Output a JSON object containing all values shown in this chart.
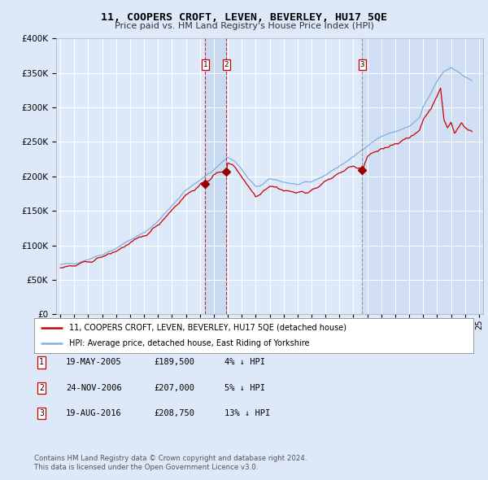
{
  "title": "11, COOPERS CROFT, LEVEN, BEVERLEY, HU17 5QE",
  "subtitle": "Price paid vs. HM Land Registry's House Price Index (HPI)",
  "background_color": "#dde8f8",
  "plot_bg_color": "#dde8f8",
  "grid_color": "#ffffff",
  "red_line_color": "#cc0000",
  "blue_line_color": "#7fb0e0",
  "shade_color": "#c5d8f0",
  "transactions": [
    {
      "num": 1,
      "price": 189500,
      "x_year": 2005.38
    },
    {
      "num": 2,
      "price": 207000,
      "x_year": 2006.9
    },
    {
      "num": 3,
      "price": 208750,
      "x_year": 2016.63
    }
  ],
  "transaction_labels": [
    {
      "num": 1,
      "date_str": "19-MAY-2005",
      "price_str": "£189,500",
      "hpi_str": "4% ↓ HPI"
    },
    {
      "num": 2,
      "date_str": "24-NOV-2006",
      "price_str": "£207,000",
      "hpi_str": "5% ↓ HPI"
    },
    {
      "num": 3,
      "date_str": "19-AUG-2016",
      "price_str": "£208,750",
      "hpi_str": "13% ↓ HPI"
    }
  ],
  "legend_line1": "11, COOPERS CROFT, LEVEN, BEVERLEY, HU17 5QE (detached house)",
  "legend_line2": "HPI: Average price, detached house, East Riding of Yorkshire",
  "footer1": "Contains HM Land Registry data © Crown copyright and database right 2024.",
  "footer2": "This data is licensed under the Open Government Licence v3.0.",
  "ylim": [
    0,
    400000
  ],
  "yticks": [
    0,
    50000,
    100000,
    150000,
    200000,
    250000,
    300000,
    350000,
    400000
  ],
  "xlim_start": 1994.7,
  "xlim_end": 2025.3
}
